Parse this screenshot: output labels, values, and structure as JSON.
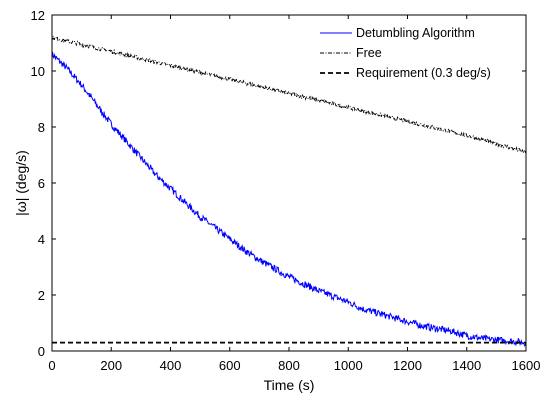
{
  "chart_data": {
    "type": "line",
    "title": "",
    "xlabel": "Time (s)",
    "ylabel": "|ω| (deg/s)",
    "xlim": [
      0,
      1600
    ],
    "ylim": [
      0,
      12
    ],
    "xticks": [
      0,
      200,
      400,
      600,
      800,
      1000,
      1200,
      1400,
      1600
    ],
    "yticks": [
      0,
      2,
      4,
      6,
      8,
      10,
      12
    ],
    "grid": false,
    "legend_position": "top-right",
    "series": [
      {
        "name": "Detumbling Algorithm",
        "color": "#0000ff",
        "style": "solid",
        "x": [
          0,
          50,
          100,
          150,
          200,
          250,
          300,
          350,
          400,
          450,
          500,
          550,
          600,
          650,
          700,
          750,
          800,
          850,
          900,
          950,
          1000,
          1050,
          1100,
          1150,
          1200,
          1250,
          1300,
          1350,
          1400,
          1450,
          1500,
          1550,
          1600
        ],
        "y": [
          10.6,
          10.1,
          9.5,
          8.8,
          8.1,
          7.5,
          6.9,
          6.3,
          5.8,
          5.3,
          4.8,
          4.4,
          4.0,
          3.6,
          3.25,
          2.95,
          2.65,
          2.4,
          2.15,
          1.95,
          1.75,
          1.5,
          1.35,
          1.2,
          1.05,
          0.9,
          0.8,
          0.7,
          0.55,
          0.45,
          0.4,
          0.35,
          0.3
        ]
      },
      {
        "name": "Free",
        "color": "#000000",
        "style": "dashdot",
        "x": [
          0,
          100,
          200,
          300,
          400,
          500,
          600,
          700,
          800,
          900,
          1000,
          1100,
          1200,
          1300,
          1400,
          1500,
          1600
        ],
        "y": [
          11.2,
          10.95,
          10.7,
          10.45,
          10.2,
          9.95,
          9.7,
          9.45,
          9.2,
          8.95,
          8.7,
          8.45,
          8.2,
          7.95,
          7.7,
          7.4,
          7.1
        ]
      },
      {
        "name": "Requirement (0.3 deg/s)",
        "color": "#000000",
        "style": "dashed",
        "x": [
          0,
          1600
        ],
        "y": [
          0.3,
          0.3
        ]
      }
    ]
  }
}
